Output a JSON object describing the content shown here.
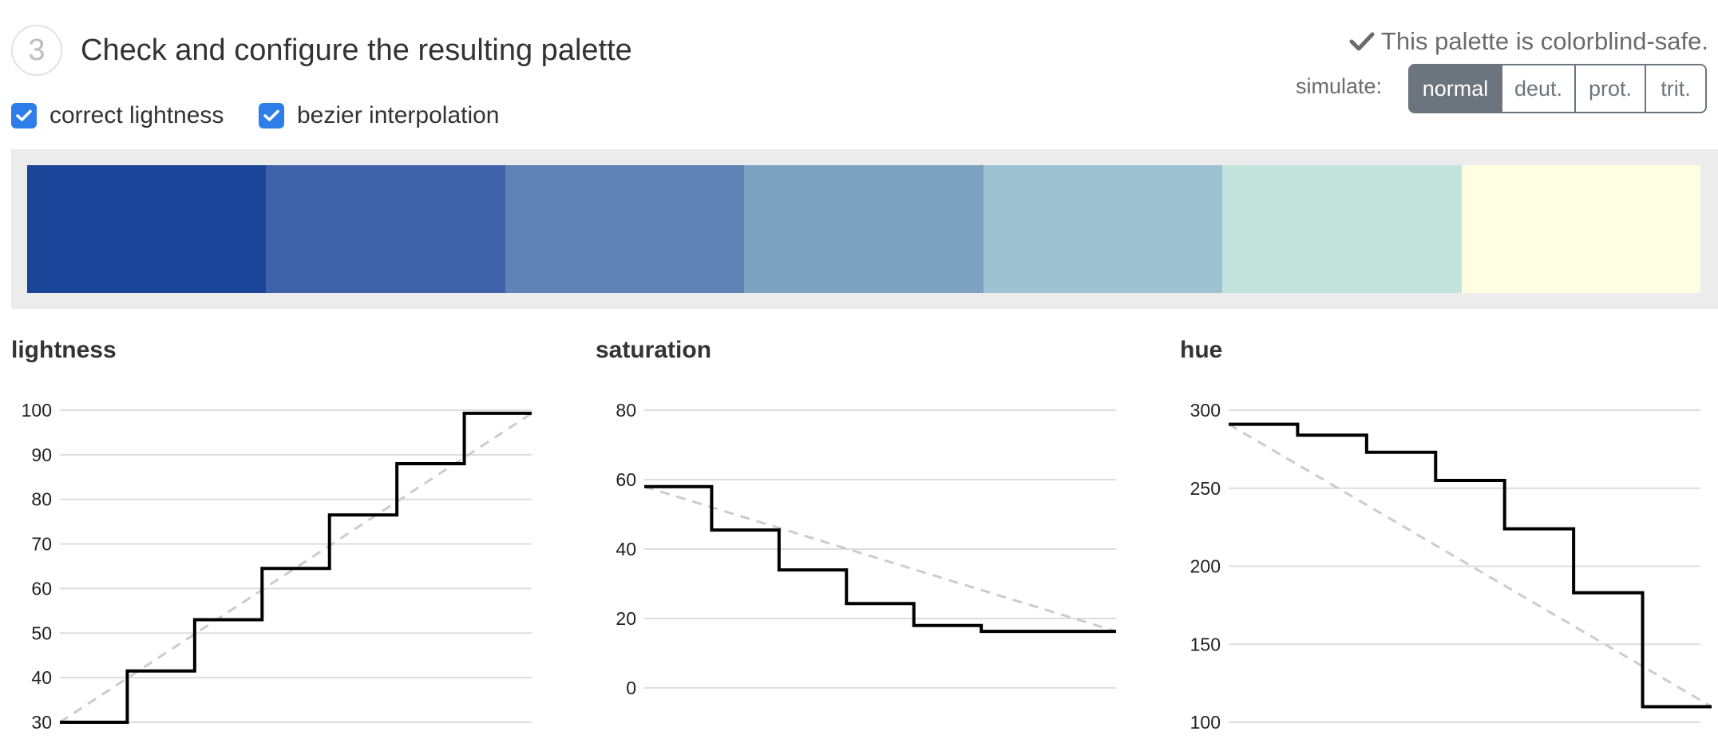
{
  "header": {
    "step_number": "3",
    "title": "Check and configure the resulting palette"
  },
  "options": {
    "correct_lightness": {
      "label": "correct lightness",
      "checked": true
    },
    "bezier_interpolation": {
      "label": "bezier interpolation",
      "checked": true
    }
  },
  "colorblind_note": "This palette is colorblind-safe.",
  "simulate": {
    "label": "simulate:",
    "buttons": [
      "normal",
      "deut.",
      "prot.",
      "trit."
    ],
    "active": "normal"
  },
  "palette": [
    "#1a4598",
    "#4062a8",
    "#6182b5",
    "#7ea2c2",
    "#9ec2d1",
    "#c2e4dd",
    "#fefee3"
  ],
  "colors": {
    "accent": "#2f7de8",
    "button": "#6c757d",
    "step_line": "#000000",
    "reference_line": "#cccccc",
    "grid": "#dddddd"
  },
  "chart_data": [
    {
      "type": "line",
      "title": "lightness",
      "y_ticks": [
        30,
        40,
        50,
        60,
        70,
        80,
        90,
        100
      ],
      "ylim": [
        30,
        100
      ],
      "steps": [
        30,
        41.5,
        53,
        64.5,
        76.5,
        88,
        99.3
      ],
      "reference": [
        30,
        99.3
      ],
      "grid": true
    },
    {
      "type": "line",
      "title": "saturation",
      "y_ticks": [
        0,
        20,
        40,
        60,
        80
      ],
      "ylim": [
        -10,
        80
      ],
      "steps": [
        58,
        45.5,
        34,
        24.3,
        18,
        16.3,
        16.3
      ],
      "reference": [
        58,
        16.3
      ],
      "grid": true
    },
    {
      "type": "line",
      "title": "hue",
      "y_ticks": [
        100,
        150,
        200,
        250,
        300
      ],
      "ylim": [
        100,
        300
      ],
      "steps": [
        291,
        284,
        273,
        255,
        224,
        183,
        110
      ],
      "reference": [
        291,
        110
      ],
      "grid": true
    }
  ]
}
